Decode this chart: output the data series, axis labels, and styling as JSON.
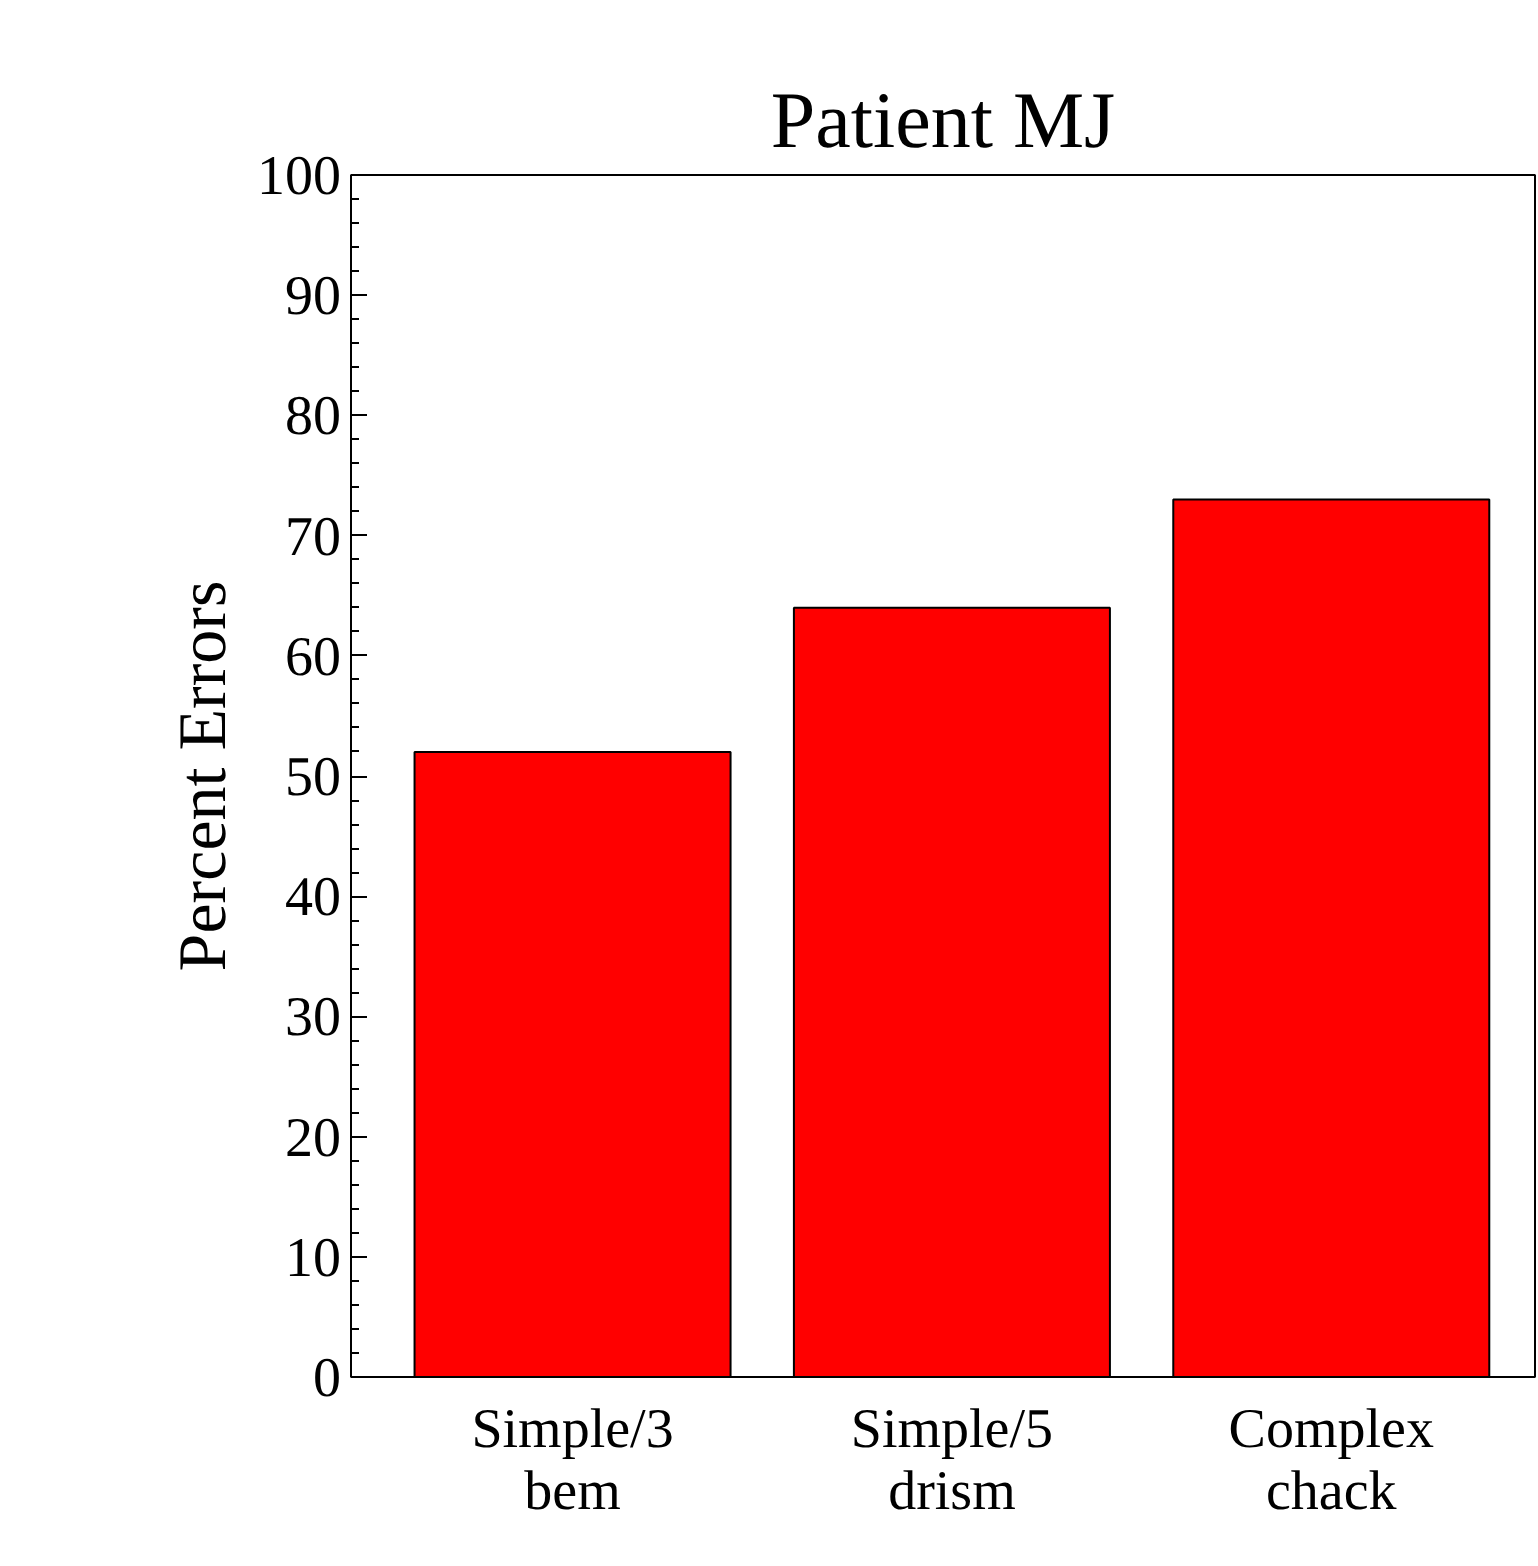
{
  "chart_data": {
    "type": "bar",
    "title": "Patient MJ",
    "ylabel": "Percent Errors",
    "categories": [
      "Simple/3\nbem",
      "Simple/5\ndrism",
      "Complex\nchack"
    ],
    "values": [
      52,
      64,
      73
    ],
    "color": "#ff0000",
    "ylim": [
      0,
      100
    ],
    "yticks": [
      0,
      10,
      20,
      30,
      40,
      50,
      60,
      70,
      80,
      90,
      100
    ],
    "grid": false
  }
}
